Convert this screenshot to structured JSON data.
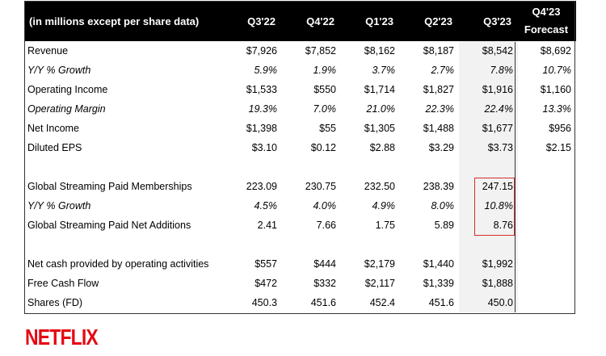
{
  "header": {
    "label": "(in millions except per share data)",
    "columns": [
      "Q3'22",
      "Q4'22",
      "Q1'23",
      "Q2'23",
      "Q3'23"
    ],
    "forecast_line1": "Q4'23",
    "forecast_line2": "Forecast"
  },
  "rows": [
    {
      "label": "Revenue",
      "values": [
        "$7,926",
        "$7,852",
        "$8,162",
        "$8,187",
        "$8,542"
      ],
      "forecast": "$8,692"
    },
    {
      "label": "Y/Y % Growth",
      "values": [
        "5.9%",
        "1.9%",
        "3.7%",
        "2.7%",
        "7.8%"
      ],
      "forecast": "10.7%"
    },
    {
      "label": "Operating Income",
      "values": [
        "$1,533",
        "$550",
        "$1,714",
        "$1,827",
        "$1,916"
      ],
      "forecast": "$1,160"
    },
    {
      "label": "Operating Margin",
      "values": [
        "19.3%",
        "7.0%",
        "21.0%",
        "22.3%",
        "22.4%"
      ],
      "forecast": "13.3%"
    },
    {
      "label": "Net Income",
      "values": [
        "$1,398",
        "$55",
        "$1,305",
        "$1,488",
        "$1,677"
      ],
      "forecast": "$956"
    },
    {
      "label": "Diluted EPS",
      "values": [
        "$3.10",
        "$0.12",
        "$2.88",
        "$3.29",
        "$3.73"
      ],
      "forecast": "$2.15"
    },
    {
      "label": "Global Streaming Paid Memberships",
      "values": [
        "223.09",
        "230.75",
        "232.50",
        "238.39",
        "247.15"
      ],
      "forecast": ""
    },
    {
      "label": "Y/Y % Growth",
      "values": [
        "4.5%",
        "4.0%",
        "4.9%",
        "8.0%",
        "10.8%"
      ],
      "forecast": ""
    },
    {
      "label": "Global Streaming Paid Net Additions",
      "values": [
        "2.41",
        "7.66",
        "1.75",
        "5.89",
        "8.76"
      ],
      "forecast": ""
    },
    {
      "label": "Net cash provided by operating activities",
      "values": [
        "$557",
        "$444",
        "$2,179",
        "$1,440",
        "$1,992"
      ],
      "forecast": ""
    },
    {
      "label": "Free Cash Flow",
      "values": [
        "$472",
        "$332",
        "$2,117",
        "$1,339",
        "$1,888"
      ],
      "forecast": ""
    },
    {
      "label": "Shares (FD)",
      "values": [
        "450.3",
        "451.6",
        "452.4",
        "451.6",
        "450.0"
      ],
      "forecast": ""
    }
  ],
  "logo": {
    "text": "NETFLIX",
    "color": "#e50914"
  }
}
